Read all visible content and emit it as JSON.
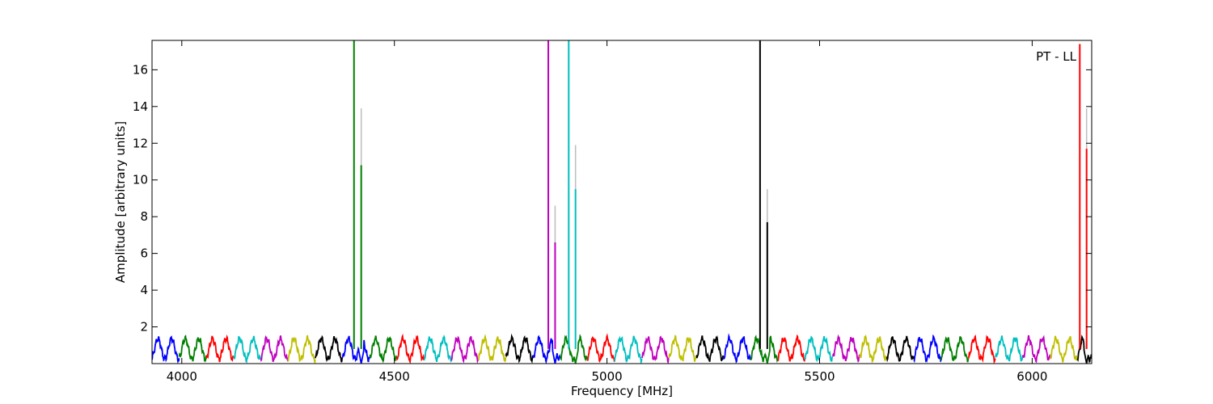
{
  "chart_data": {
    "type": "line",
    "title": "",
    "annotation": "PT - LL",
    "xlabel": "Frequency [MHz]",
    "ylabel": "Amplitude [arbitrary units]",
    "xlim": [
      3930,
      6140
    ],
    "ylim": [
      0,
      17.6
    ],
    "xticks": [
      4000,
      4500,
      5000,
      5500,
      6000
    ],
    "yticks": [
      2,
      4,
      6,
      8,
      10,
      12,
      14,
      16
    ],
    "grid": false,
    "legend": "none",
    "baseline": {
      "mean": 0.8,
      "amplitude": 0.55,
      "min": 0.0,
      "max": 1.6,
      "ripple_period_mhz": 32,
      "segment_width_mhz": 64,
      "segment_colors": [
        "#0000ff",
        "#008000",
        "#ff0000",
        "#00bfbf",
        "#bf00bf",
        "#bfbf00",
        "#000000"
      ]
    },
    "spikes": [
      {
        "x": 4405,
        "y": 17.6,
        "color": "#008000"
      },
      {
        "x": 4422,
        "y": 10.8,
        "color": "#008000",
        "shadow": 13.9
      },
      {
        "x": 4862,
        "y": 17.6,
        "color": "#bf00bf"
      },
      {
        "x": 4878,
        "y": 6.6,
        "color": "#bf00bf",
        "shadow": 8.6
      },
      {
        "x": 4910,
        "y": 17.6,
        "color": "#00bfbf"
      },
      {
        "x": 4926,
        "y": 9.5,
        "color": "#00bfbf",
        "shadow": 11.9
      },
      {
        "x": 5360,
        "y": 17.6,
        "color": "#000000"
      },
      {
        "x": 5377,
        "y": 7.7,
        "color": "#000000",
        "shadow": 9.5
      },
      {
        "x": 6112,
        "y": 17.4,
        "color": "#ff0000"
      },
      {
        "x": 6128,
        "y": 11.7,
        "color": "#ff0000",
        "shadow": 13.9
      }
    ],
    "dips": [
      4422,
      4878,
      4926,
      5377,
      6128
    ]
  }
}
